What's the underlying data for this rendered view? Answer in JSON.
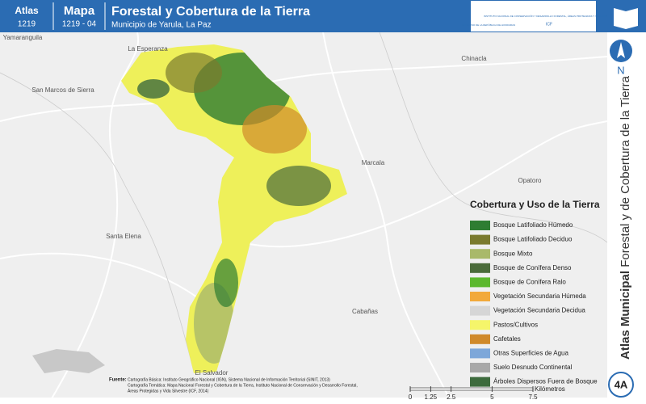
{
  "header": {
    "atlas_label": "Atlas",
    "atlas_code": "1219",
    "map_label": "Mapa",
    "map_code": "1219 - 04",
    "title": "Forestal y Cobertura de la Tierra",
    "subtitle": "Municipio de Yarula, La Paz",
    "logo_left": "GOBIERNO DE LA REPÚBLICA DE HONDURAS",
    "logo_right": "INSTITUTO NACIONAL DE CONSERVACIÓN Y DESARROLLO FORESTAL, ÁREAS PROTEGIDAS Y VIDA SILVESTRE",
    "logo_right_short": "ICF"
  },
  "places": [
    "Yamaranguila",
    "La Esperanza",
    "Chinacla",
    "San Marcos de Sierra",
    "Marcala",
    "Opatoro",
    "Santa Elena",
    "Cabañas",
    "El Salvador"
  ],
  "sidebar": {
    "north": "N",
    "atlas": "Atlas Municipal",
    "theme": "Forestal y de Cobertura de la Tierra",
    "badge": "4A"
  },
  "legend": {
    "title": "Cobertura y Uso de la Tierra",
    "items": [
      {
        "label": "Bosque Latifoliado Húmedo",
        "color": "#2e7d32"
      },
      {
        "label": "Bosque Latifoliado Deciduo",
        "color": "#7a7a2e"
      },
      {
        "label": "Bosque Mixto",
        "color": "#a9b96a"
      },
      {
        "label": "Bosque de Conífera Denso",
        "color": "#4a6b3a"
      },
      {
        "label": "Bosque de Conífera Ralo",
        "color": "#5cb82e"
      },
      {
        "label": "Vegetación Secundaria Húmeda",
        "color": "#f2a93b"
      },
      {
        "label": "Vegetación Secundaria Decidua",
        "color": "#d6d6d6"
      },
      {
        "label": "Pastos/Cultivos",
        "color": "#f5f56a"
      },
      {
        "label": "Cafetales",
        "color": "#d08a2a"
      },
      {
        "label": "Otras Superficies de Agua",
        "color": "#7da7d9"
      },
      {
        "label": "Suelo Desnudo Continental",
        "color": "#a8a8a8"
      },
      {
        "label": "Árboles Dispersos Fuera de Bosque",
        "color": "#3d6b3d"
      }
    ]
  },
  "scale": {
    "ticks": [
      0,
      1.25,
      2.5,
      5,
      7.5
    ],
    "unit": "Kilómetros"
  },
  "sources": {
    "label": "Fuente:",
    "lines": [
      "Cartografía Básica: Instituto Geográfico Nacional (IGN), Sistema Nacional de Información Territorial (SINIT, 2013)",
      "Cartografía Temática: Mapa Nacional Forestal y Cobertura de la Tierra, Instituto Nacional de Conservación y Desarrollo Forestal,",
      "Áreas Protegidas y Vida Silvestre (ICF, 2014)"
    ]
  }
}
